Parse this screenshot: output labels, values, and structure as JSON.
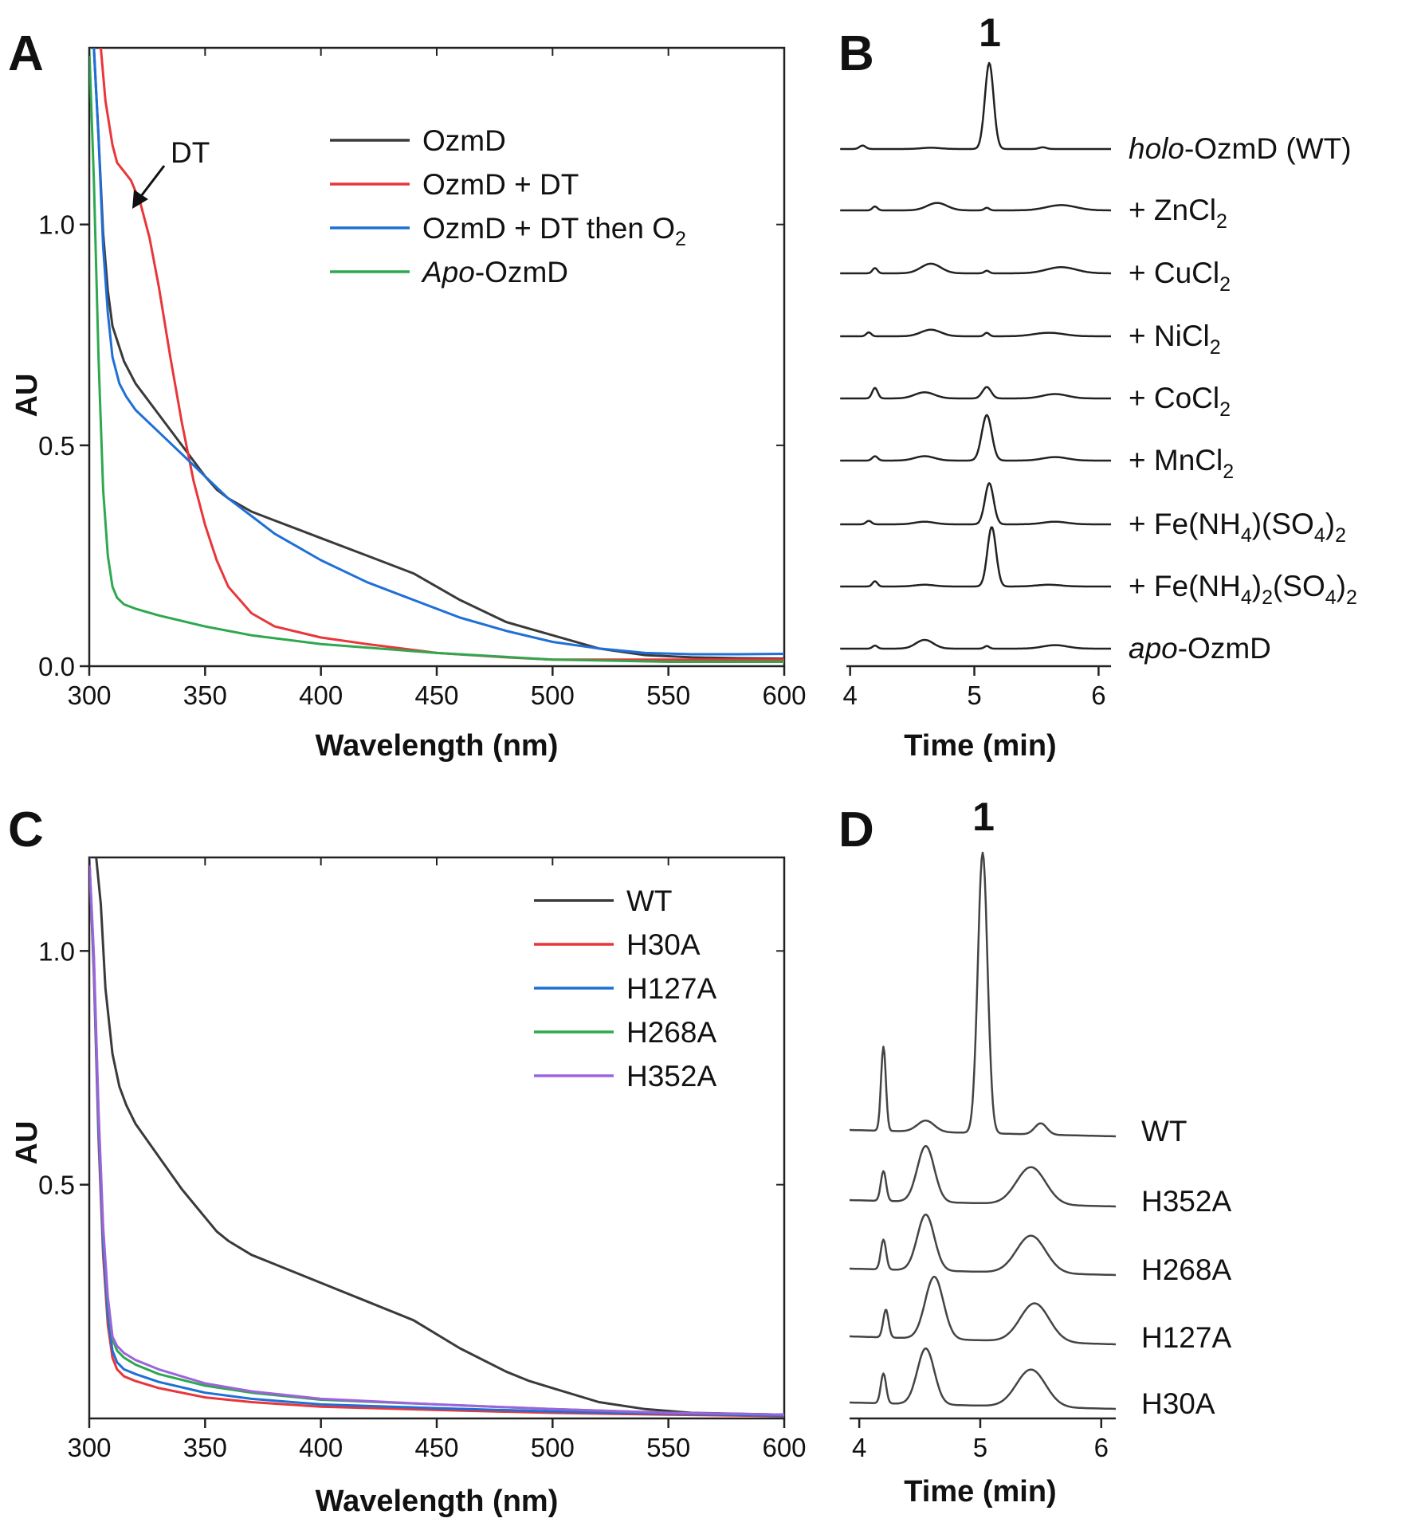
{
  "chart_data": [
    {
      "panel": "A",
      "type": "line",
      "xlabel": "Wavelength (nm)",
      "ylabel": "AU",
      "xlim": [
        300,
        600
      ],
      "ylim": [
        0,
        1.4
      ],
      "xticks": [
        300,
        350,
        400,
        450,
        500,
        550,
        600
      ],
      "yticks": [
        0.0,
        0.5,
        1.0
      ],
      "ytick_labels": [
        "0.0",
        "0.5",
        "1.0"
      ],
      "legend": "top-right",
      "annotation": {
        "text": "DT",
        "x": 316,
        "y": 1.1
      },
      "series": [
        {
          "name": "OzmD",
          "color": "#3a3a3a",
          "x": [
            302,
            304,
            306,
            308,
            310,
            315,
            320,
            330,
            340,
            350,
            355,
            360,
            370,
            380,
            390,
            400,
            420,
            440,
            460,
            480,
            490,
            500,
            520,
            540,
            560,
            580,
            600
          ],
          "y": [
            1.4,
            1.2,
            0.98,
            0.85,
            0.77,
            0.69,
            0.64,
            0.57,
            0.5,
            0.43,
            0.4,
            0.38,
            0.35,
            0.33,
            0.31,
            0.29,
            0.25,
            0.21,
            0.15,
            0.1,
            0.085,
            0.07,
            0.04,
            0.025,
            0.02,
            0.018,
            0.017
          ]
        },
        {
          "name": "OzmD + DT",
          "color": "#e8363a",
          "x": [
            305,
            307,
            310,
            312,
            315,
            318,
            322,
            326,
            330,
            335,
            340,
            345,
            350,
            355,
            360,
            370,
            380,
            400,
            420,
            450,
            480,
            500,
            550,
            600
          ],
          "y": [
            1.4,
            1.28,
            1.18,
            1.14,
            1.12,
            1.1,
            1.05,
            0.97,
            0.86,
            0.7,
            0.55,
            0.42,
            0.32,
            0.24,
            0.18,
            0.12,
            0.09,
            0.065,
            0.05,
            0.03,
            0.02,
            0.015,
            0.015,
            0.015
          ]
        },
        {
          "name": "OzmD + DT then O₂",
          "color": "#1f6fd6",
          "x": [
            302,
            304,
            306,
            308,
            310,
            313,
            316,
            320,
            330,
            340,
            350,
            360,
            370,
            380,
            400,
            420,
            440,
            460,
            480,
            500,
            520,
            540,
            560,
            580,
            600
          ],
          "y": [
            1.4,
            1.2,
            0.95,
            0.8,
            0.7,
            0.64,
            0.61,
            0.58,
            0.53,
            0.48,
            0.43,
            0.38,
            0.34,
            0.3,
            0.24,
            0.19,
            0.15,
            0.11,
            0.08,
            0.055,
            0.04,
            0.03,
            0.027,
            0.027,
            0.028
          ]
        },
        {
          "name": "Apo-OzmD",
          "color": "#2ea84f",
          "x": [
            300,
            302,
            304,
            306,
            308,
            310,
            312,
            315,
            320,
            330,
            350,
            370,
            400,
            450,
            500,
            550,
            600
          ],
          "y": [
            1.4,
            1.1,
            0.7,
            0.4,
            0.25,
            0.18,
            0.155,
            0.14,
            0.13,
            0.115,
            0.09,
            0.07,
            0.05,
            0.03,
            0.015,
            0.01,
            0.01
          ]
        }
      ]
    },
    {
      "panel": "B",
      "type": "line",
      "xlabel": "Time (min)",
      "xlim": [
        3.97,
        6.1
      ],
      "xticks": [
        4,
        5,
        6
      ],
      "peak_label": "1",
      "peak_time": 5.12,
      "series": [
        {
          "label_parts": [
            {
              "t": "holo",
              "i": true
            },
            {
              "t": "-OzmD (WT)"
            }
          ],
          "color": "#222222",
          "peaks": [
            [
              4.1,
              0.04,
              0.025
            ],
            [
              4.65,
              0.015,
              0.08
            ],
            [
              5.12,
              1.0,
              0.035
            ],
            [
              5.55,
              0.02,
              0.03
            ]
          ]
        },
        {
          "label_parts": [
            {
              "t": "+ ZnCl"
            },
            {
              "t": "2",
              "sub": true
            }
          ],
          "color": "#222222",
          "peaks": [
            [
              4.2,
              0.045,
              0.02
            ],
            [
              4.7,
              0.085,
              0.08
            ],
            [
              5.1,
              0.03,
              0.02
            ],
            [
              5.7,
              0.06,
              0.12
            ]
          ]
        },
        {
          "label_parts": [
            {
              "t": "+ CuCl"
            },
            {
              "t": "2",
              "sub": true
            }
          ],
          "color": "#222222",
          "peaks": [
            [
              4.2,
              0.06,
              0.02
            ],
            [
              4.65,
              0.11,
              0.08
            ],
            [
              5.1,
              0.03,
              0.02
            ],
            [
              5.7,
              0.07,
              0.12
            ]
          ]
        },
        {
          "label_parts": [
            {
              "t": "+ NiCl"
            },
            {
              "t": "2",
              "sub": true
            }
          ],
          "color": "#222222",
          "peaks": [
            [
              4.15,
              0.045,
              0.02
            ],
            [
              4.65,
              0.075,
              0.08
            ],
            [
              5.1,
              0.04,
              0.02
            ],
            [
              5.6,
              0.04,
              0.12
            ]
          ]
        },
        {
          "label_parts": [
            {
              "t": "+ CoCl"
            },
            {
              "t": "2",
              "sub": true
            }
          ],
          "color": "#222222",
          "peaks": [
            [
              4.2,
              0.12,
              0.022
            ],
            [
              4.6,
              0.07,
              0.08
            ],
            [
              5.1,
              0.13,
              0.035
            ],
            [
              5.65,
              0.05,
              0.1
            ]
          ]
        },
        {
          "label_parts": [
            {
              "t": "+ MnCl"
            },
            {
              "t": "2",
              "sub": true
            }
          ],
          "color": "#222222",
          "peaks": [
            [
              4.2,
              0.05,
              0.022
            ],
            [
              4.6,
              0.05,
              0.08
            ],
            [
              5.1,
              0.52,
              0.04
            ],
            [
              5.65,
              0.04,
              0.1
            ]
          ]
        },
        {
          "label_parts": [
            {
              "t": "+ Fe(NH"
            },
            {
              "t": "4",
              "sub": true
            },
            {
              "t": ")(SO"
            },
            {
              "t": "4",
              "sub": true
            },
            {
              "t": ")"
            },
            {
              "t": "2",
              "sub": true
            }
          ],
          "color": "#222222",
          "peaks": [
            [
              4.15,
              0.04,
              0.022
            ],
            [
              4.6,
              0.03,
              0.08
            ],
            [
              5.12,
              0.47,
              0.035
            ],
            [
              5.65,
              0.03,
              0.1
            ]
          ]
        },
        {
          "label_parts": [
            {
              "t": "+ Fe(NH"
            },
            {
              "t": "4",
              "sub": true
            },
            {
              "t": ")"
            },
            {
              "t": "2",
              "sub": true
            },
            {
              "t": "(SO"
            },
            {
              "t": "4",
              "sub": true
            },
            {
              "t": ")"
            },
            {
              "t": "2",
              "sub": true
            }
          ],
          "color": "#222222",
          "peaks": [
            [
              4.2,
              0.06,
              0.02
            ],
            [
              4.6,
              0.02,
              0.08
            ],
            [
              5.14,
              0.68,
              0.035
            ],
            [
              5.6,
              0.02,
              0.1
            ]
          ]
        },
        {
          "label_parts": [
            {
              "t": "apo",
              "i": true
            },
            {
              "t": "-OzmD"
            }
          ],
          "color": "#222222",
          "peaks": [
            [
              4.2,
              0.035,
              0.02
            ],
            [
              4.6,
              0.1,
              0.07
            ],
            [
              5.1,
              0.03,
              0.02
            ],
            [
              5.65,
              0.04,
              0.1
            ]
          ]
        }
      ]
    },
    {
      "panel": "C",
      "type": "line",
      "xlabel": "Wavelength (nm)",
      "ylabel": "AU",
      "xlim": [
        300,
        600
      ],
      "ylim": [
        0,
        1.2
      ],
      "xticks": [
        300,
        350,
        400,
        450,
        500,
        550,
        600
      ],
      "yticks": [
        0.5,
        1.0
      ],
      "ytick_labels": [
        "0.5",
        "1.0"
      ],
      "legend": "top-right",
      "series": [
        {
          "name": "WT",
          "color": "#3a3a3a",
          "x": [
            303,
            305,
            307,
            310,
            313,
            316,
            320,
            330,
            340,
            350,
            355,
            360,
            370,
            380,
            390,
            400,
            420,
            440,
            460,
            480,
            490,
            500,
            520,
            540,
            560,
            580,
            600
          ],
          "y": [
            1.2,
            1.1,
            0.92,
            0.78,
            0.71,
            0.67,
            0.63,
            0.56,
            0.49,
            0.43,
            0.4,
            0.38,
            0.35,
            0.33,
            0.31,
            0.29,
            0.25,
            0.21,
            0.15,
            0.1,
            0.08,
            0.065,
            0.035,
            0.02,
            0.012,
            0.01,
            0.008
          ]
        },
        {
          "name": "H30A",
          "color": "#e8363a",
          "x": [
            300,
            302,
            304,
            306,
            308,
            310,
            312,
            315,
            320,
            330,
            350,
            370,
            400,
            450,
            500,
            550,
            600
          ],
          "y": [
            1.2,
            0.95,
            0.6,
            0.35,
            0.2,
            0.13,
            0.105,
            0.09,
            0.08,
            0.065,
            0.045,
            0.035,
            0.025,
            0.018,
            0.012,
            0.008,
            0.005
          ]
        },
        {
          "name": "H127A",
          "color": "#1f6fd6",
          "x": [
            300,
            302,
            304,
            306,
            308,
            310,
            312,
            315,
            320,
            330,
            350,
            370,
            400,
            450,
            500,
            550,
            600
          ],
          "y": [
            1.2,
            0.96,
            0.62,
            0.37,
            0.22,
            0.145,
            0.12,
            0.105,
            0.095,
            0.078,
            0.055,
            0.042,
            0.03,
            0.022,
            0.015,
            0.01,
            0.006
          ]
        },
        {
          "name": "H268A",
          "color": "#2ea84f",
          "x": [
            300,
            302,
            304,
            306,
            308,
            310,
            312,
            315,
            320,
            330,
            350,
            370,
            400,
            450,
            500,
            550,
            600
          ],
          "y": [
            1.2,
            0.98,
            0.65,
            0.4,
            0.25,
            0.17,
            0.145,
            0.13,
            0.115,
            0.095,
            0.07,
            0.055,
            0.04,
            0.03,
            0.02,
            0.012,
            0.008
          ]
        },
        {
          "name": "H352A",
          "color": "#9d62dd",
          "x": [
            300,
            302,
            304,
            306,
            308,
            310,
            312,
            315,
            320,
            330,
            350,
            370,
            400,
            450,
            500,
            550,
            600
          ],
          "y": [
            1.2,
            0.99,
            0.66,
            0.41,
            0.26,
            0.175,
            0.155,
            0.14,
            0.125,
            0.105,
            0.075,
            0.058,
            0.042,
            0.03,
            0.02,
            0.012,
            0.008
          ]
        }
      ]
    },
    {
      "panel": "D",
      "type": "line",
      "xlabel": "Time (min)",
      "xlim": [
        3.92,
        6.12
      ],
      "xticks": [
        4,
        5,
        6
      ],
      "peak_label": "1",
      "peak_time": 5.02,
      "series": [
        {
          "label_parts": [
            {
              "t": "WT"
            }
          ],
          "color": "#444444",
          "peaks": [
            [
              4.2,
              0.3,
              0.02
            ],
            [
              4.55,
              0.04,
              0.07
            ],
            [
              5.02,
              1.0,
              0.04
            ],
            [
              5.5,
              0.04,
              0.05
            ]
          ]
        },
        {
          "label_parts": [
            {
              "t": "H352A"
            }
          ],
          "color": "#444444",
          "peaks": [
            [
              4.2,
              0.48,
              0.022
            ],
            [
              4.55,
              0.9,
              0.07
            ],
            [
              5.42,
              0.6,
              0.12
            ]
          ]
        },
        {
          "label_parts": [
            {
              "t": "H268A"
            }
          ],
          "color": "#444444",
          "peaks": [
            [
              4.2,
              0.48,
              0.022
            ],
            [
              4.55,
              0.9,
              0.07
            ],
            [
              5.42,
              0.6,
              0.12
            ]
          ]
        },
        {
          "label_parts": [
            {
              "t": "H127A"
            }
          ],
          "color": "#444444",
          "peaks": [
            [
              4.22,
              0.45,
              0.022
            ],
            [
              4.62,
              1.0,
              0.075
            ],
            [
              5.45,
              0.62,
              0.12
            ]
          ]
        },
        {
          "label_parts": [
            {
              "t": "H30A"
            }
          ],
          "color": "#444444",
          "peaks": [
            [
              4.2,
              0.48,
              0.022
            ],
            [
              4.55,
              0.9,
              0.07
            ],
            [
              5.42,
              0.6,
              0.12
            ]
          ]
        }
      ]
    }
  ]
}
